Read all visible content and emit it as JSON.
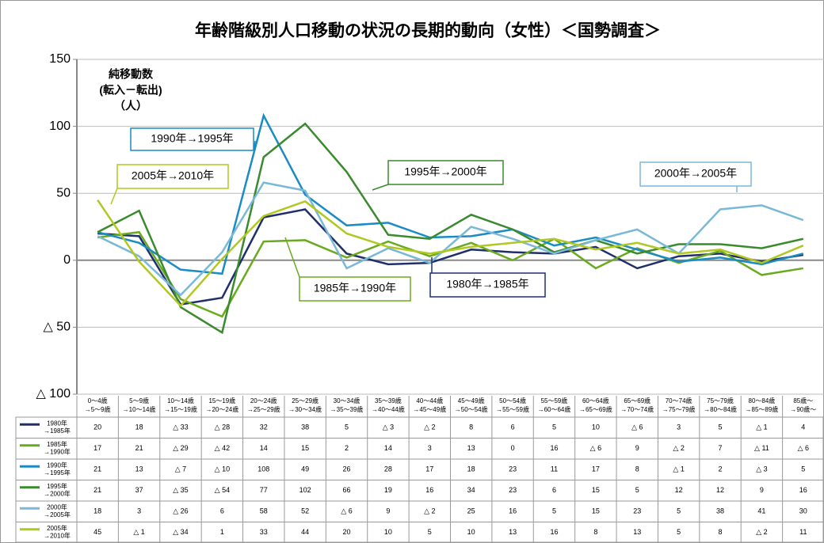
{
  "chart_data": {
    "type": "line",
    "title": "年齢階級別人口移動の状況の長期的動向（女性）＜国勢調査＞",
    "y_label": [
      "純移動数",
      "(転入－転出)",
      "（人）"
    ],
    "categories": [
      [
        "0～4歳",
        "→5～9歳"
      ],
      [
        "5～9歳",
        "→10～14歳"
      ],
      [
        "10～14歳",
        "→15～19歳"
      ],
      [
        "15～19歳",
        "→20～24歳"
      ],
      [
        "20～24歳",
        "→25～29歳"
      ],
      [
        "25～29歳",
        "→30～34歳"
      ],
      [
        "30～34歳",
        "→35～39歳"
      ],
      [
        "35～39歳",
        "→40～44歳"
      ],
      [
        "40～44歳",
        "→45～49歳"
      ],
      [
        "45～49歳",
        "→50～54歳"
      ],
      [
        "50～54歳",
        "→55～59歳"
      ],
      [
        "55～59歳",
        "→60～64歳"
      ],
      [
        "60～64歳",
        "→65～69歳"
      ],
      [
        "65～69歳",
        "→70～74歳"
      ],
      [
        "70～74歳",
        "→75～79歳"
      ],
      [
        "75～79歳",
        "→80～84歳"
      ],
      [
        "80～84歳",
        "→85～89歳"
      ],
      [
        "85歳～",
        "→90歳～"
      ]
    ],
    "ylim": [
      -100,
      150
    ],
    "yticks": [
      150,
      100,
      50,
      0,
      {
        "value": -50,
        "label": "△ 50"
      },
      {
        "value": -100,
        "label": "△ 100"
      }
    ],
    "grid": true,
    "series": [
      {
        "name": "1980年→1985年",
        "color": "#1f2f6b",
        "values": [
          20,
          18,
          -33,
          -28,
          32,
          38,
          5,
          -3,
          -2,
          8,
          6,
          5,
          10,
          -6,
          3,
          5,
          -1,
          4
        ],
        "value_labels": [
          "20",
          "18",
          "△ 33",
          "△ 28",
          "32",
          "38",
          "5",
          "△ 3",
          "△ 2",
          "8",
          "6",
          "5",
          "10",
          "△ 6",
          "3",
          "5",
          "△ 1",
          "4"
        ]
      },
      {
        "name": "1985年→1990年",
        "color": "#6aaa1e",
        "values": [
          17,
          21,
          -29,
          -42,
          14,
          15,
          2,
          14,
          3,
          13,
          0,
          16,
          -6,
          9,
          -2,
          7,
          -11,
          -6
        ],
        "value_labels": [
          "17",
          "21",
          "△ 29",
          "△ 42",
          "14",
          "15",
          "2",
          "14",
          "3",
          "13",
          "0",
          "16",
          "△ 6",
          "9",
          "△ 2",
          "7",
          "△ 11",
          "△ 6"
        ]
      },
      {
        "name": "1990年→1995年",
        "color": "#1a8cc4",
        "values": [
          21,
          13,
          -7,
          -10,
          108,
          49,
          26,
          28,
          17,
          18,
          23,
          11,
          17,
          8,
          -1,
          2,
          -3,
          5
        ],
        "value_labels": [
          "21",
          "13",
          "△ 7",
          "△ 10",
          "108",
          "49",
          "26",
          "28",
          "17",
          "18",
          "23",
          "11",
          "17",
          "8",
          "△ 1",
          "2",
          "△ 3",
          "5"
        ]
      },
      {
        "name": "1995年→2000年",
        "color": "#3a8a2e",
        "values": [
          21,
          37,
          -35,
          -54,
          77,
          102,
          66,
          19,
          16,
          34,
          23,
          6,
          15,
          5,
          12,
          12,
          9,
          16
        ],
        "value_labels": [
          "21",
          "37",
          "△ 35",
          "△ 54",
          "77",
          "102",
          "66",
          "19",
          "16",
          "34",
          "23",
          "6",
          "15",
          "5",
          "12",
          "12",
          "9",
          "16"
        ]
      },
      {
        "name": "2000年→2005年",
        "color": "#7ab8d8",
        "values": [
          18,
          3,
          -26,
          6,
          58,
          52,
          -6,
          9,
          -2,
          25,
          16,
          5,
          15,
          23,
          5,
          38,
          41,
          30
        ],
        "value_labels": [
          "18",
          "3",
          "△ 26",
          "6",
          "58",
          "52",
          "△ 6",
          "9",
          "△ 2",
          "25",
          "16",
          "5",
          "15",
          "23",
          "5",
          "38",
          "41",
          "30"
        ]
      },
      {
        "name": "2005年→2010年",
        "color": "#b0c820",
        "values": [
          45,
          -1,
          -34,
          1,
          33,
          44,
          20,
          10,
          5,
          10,
          13,
          16,
          8,
          13,
          5,
          8,
          -2,
          11
        ],
        "value_labels": [
          "45",
          "△ 1",
          "△ 34",
          "1",
          "33",
          "44",
          "20",
          "10",
          "5",
          "10",
          "13",
          "16",
          "8",
          "13",
          "5",
          "8",
          "△ 2",
          "11"
        ]
      }
    ]
  }
}
